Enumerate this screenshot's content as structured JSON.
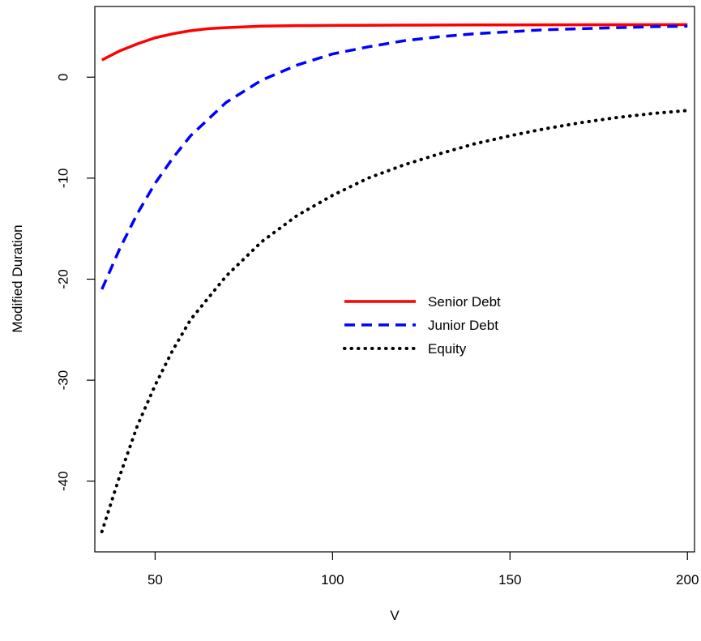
{
  "chart_data": {
    "type": "line",
    "title": "",
    "xlabel": "V",
    "ylabel": "Modified Duration",
    "xlim": [
      33,
      202
    ],
    "ylim": [
      -47,
      7
    ],
    "xticks": [
      50,
      100,
      150,
      200
    ],
    "yticks": [
      0,
      -10,
      -20,
      -30,
      -40
    ],
    "xtick_labels": [
      "50",
      "100",
      "150",
      "200"
    ],
    "ytick_labels": [
      "0",
      "-10",
      "-20",
      "-30",
      "-40"
    ],
    "grid": false,
    "legend": {
      "placement": "center"
    },
    "series": [
      {
        "name": "Senior Debt",
        "color": "#ff0000",
        "style": "solid",
        "x": [
          35,
          40,
          45,
          50,
          55,
          60,
          65,
          70,
          80,
          90,
          100,
          120,
          140,
          160,
          180,
          200
        ],
        "y": [
          1.7,
          2.6,
          3.3,
          3.9,
          4.3,
          4.6,
          4.8,
          4.9,
          5.05,
          5.1,
          5.12,
          5.15,
          5.17,
          5.18,
          5.19,
          5.2
        ]
      },
      {
        "name": "Junior Debt",
        "color": "#0000ff",
        "style": "dashed",
        "x": [
          35,
          40,
          45,
          50,
          55,
          60,
          70,
          80,
          90,
          100,
          110,
          120,
          130,
          140,
          150,
          160,
          170,
          180,
          190,
          200
        ],
        "y": [
          -21,
          -17,
          -13.5,
          -10.5,
          -8,
          -5.8,
          -2.5,
          -0.3,
          1.2,
          2.3,
          3.0,
          3.6,
          4.0,
          4.3,
          4.5,
          4.7,
          4.8,
          4.9,
          5.0,
          5.05
        ]
      },
      {
        "name": "Equity",
        "color": "#000000",
        "style": "dotted",
        "x": [
          35,
          40,
          45,
          50,
          55,
          60,
          70,
          80,
          90,
          100,
          110,
          120,
          130,
          140,
          150,
          160,
          170,
          180,
          190,
          200
        ],
        "y": [
          -45,
          -39.5,
          -34.5,
          -30.5,
          -27,
          -24,
          -19.7,
          -16.3,
          -13.7,
          -11.7,
          -10,
          -8.7,
          -7.6,
          -6.6,
          -5.8,
          -5.1,
          -4.5,
          -4.0,
          -3.6,
          -3.3
        ]
      }
    ]
  }
}
